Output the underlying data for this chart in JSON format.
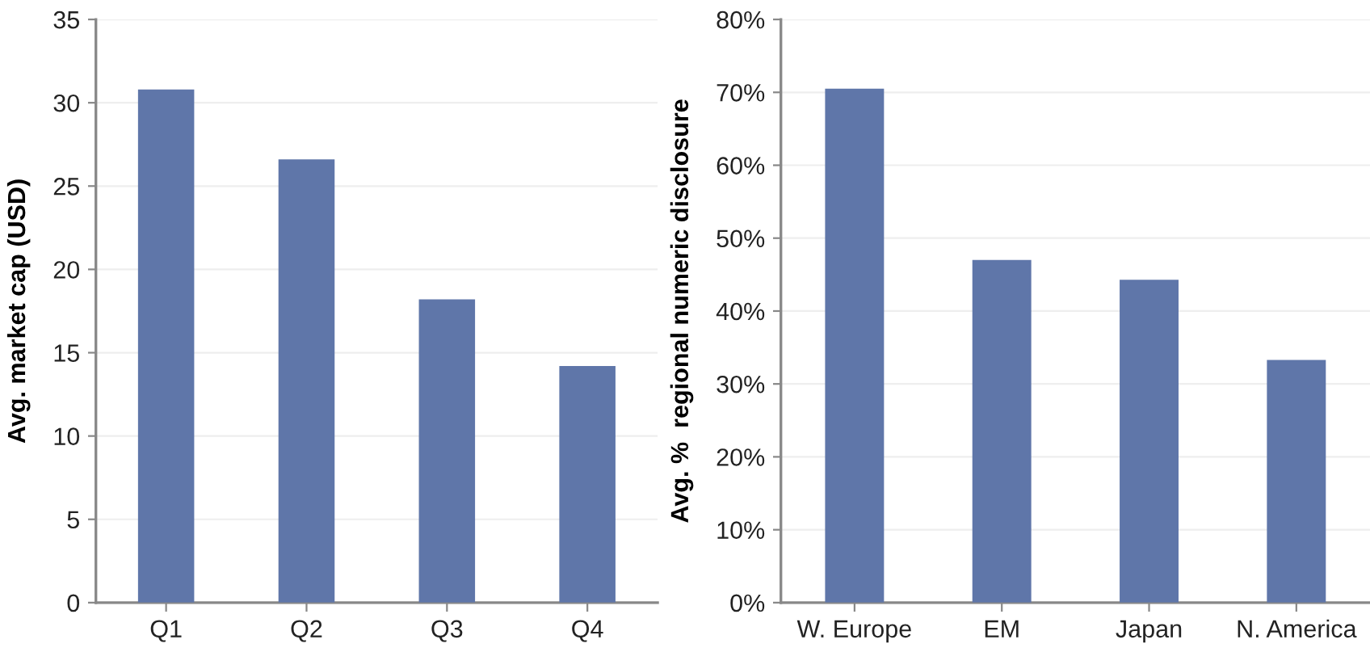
{
  "chart_data": [
    {
      "type": "bar",
      "ylabel": "Avg. market cap (USD)",
      "categories": [
        "Q1",
        "Q2",
        "Q3",
        "Q4"
      ],
      "values": [
        30.8,
        26.6,
        18.2,
        14.2
      ],
      "color": "#5f76a9",
      "ylim": [
        0,
        35
      ],
      "yticks": [
        0,
        5,
        10,
        15,
        20,
        25,
        30,
        35
      ],
      "grid": "y"
    },
    {
      "type": "bar",
      "ylabel": "Avg. %  regional numeric disclosure",
      "categories": [
        "W. Europe",
        "EM",
        "Japan",
        "N. America"
      ],
      "values": [
        70.5,
        47.0,
        44.3,
        33.3
      ],
      "color": "#5f76a9",
      "ylim": [
        0,
        80
      ],
      "yticks": [
        {
          "value": 0,
          "label": "0%"
        },
        {
          "value": 10,
          "label": "10%"
        },
        {
          "value": 20,
          "label": "20%"
        },
        {
          "value": 30,
          "label": "30%"
        },
        {
          "value": 40,
          "label": "40%"
        },
        {
          "value": 50,
          "label": "50%"
        },
        {
          "value": 60,
          "label": "60%"
        },
        {
          "value": 70,
          "label": "70%"
        },
        {
          "value": 80,
          "label": "80%"
        }
      ],
      "grid": "y"
    }
  ]
}
